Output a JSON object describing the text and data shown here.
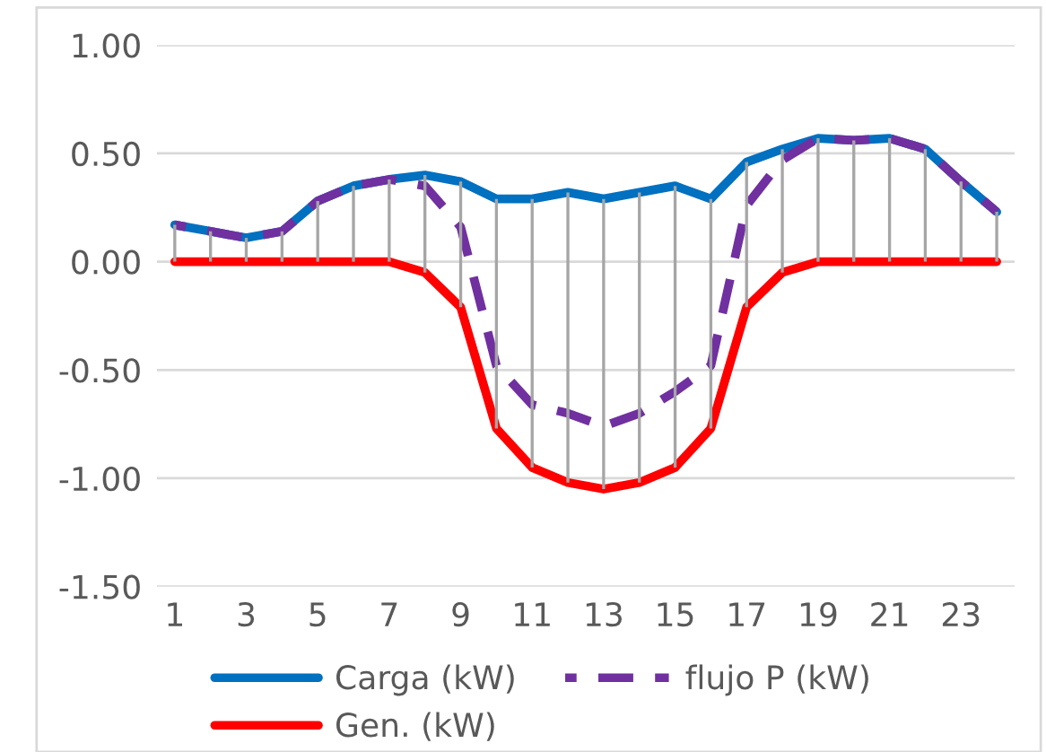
{
  "chart_data": {
    "type": "line",
    "categories": [
      "1",
      null,
      "3",
      null,
      "5",
      null,
      "7",
      null,
      "9",
      null,
      "11",
      null,
      "13",
      null,
      "15",
      null,
      "17",
      null,
      "19",
      null,
      "21",
      null,
      "23",
      null
    ],
    "series": [
      {
        "name": "Carga (kW)",
        "color": "#0070c0",
        "line_style": "solid",
        "values": [
          0.17,
          0.14,
          0.11,
          0.14,
          0.28,
          0.35,
          0.38,
          0.4,
          0.37,
          0.29,
          0.29,
          0.32,
          0.29,
          0.32,
          0.35,
          0.29,
          0.46,
          0.52,
          0.57,
          0.56,
          0.57,
          0.52,
          0.37,
          0.23
        ]
      },
      {
        "name": "Gen. (kW)",
        "color": "#ff0000",
        "line_style": "solid",
        "errors": [
          [
            0,
            0.17
          ],
          [
            0,
            0.14
          ],
          [
            0,
            0.11
          ],
          [
            0,
            0.14
          ],
          [
            0,
            0.28
          ],
          [
            0,
            0.35
          ],
          [
            0,
            0.38
          ],
          [
            -0.05,
            0.4
          ],
          [
            -0.21,
            0.37
          ],
          [
            -0.77,
            0.29
          ],
          [
            -0.95,
            0.29
          ],
          [
            -1.02,
            0.32
          ],
          [
            -1.05,
            0.29
          ],
          [
            -1.02,
            0.32
          ],
          [
            -0.95,
            0.35
          ],
          [
            -0.77,
            0.29
          ],
          [
            -0.21,
            0.46
          ],
          [
            -0.05,
            0.52
          ],
          [
            0,
            0.57
          ],
          [
            0,
            0.56
          ],
          [
            0,
            0.57
          ],
          [
            0,
            0.52
          ],
          [
            0,
            0.37
          ],
          [
            0,
            0.23
          ]
        ],
        "values": [
          0,
          0,
          0,
          0,
          0,
          0,
          0,
          -0.05,
          -0.21,
          -0.77,
          -0.95,
          -1.02,
          -1.05,
          -1.02,
          -0.95,
          -0.77,
          -0.21,
          -0.05,
          0,
          0,
          0,
          0,
          0,
          0
        ]
      },
      {
        "name": "flujo P (kW)",
        "color": "#7030a0",
        "line_style": "dashed",
        "values": [
          0.17,
          0.14,
          0.11,
          0.14,
          0.28,
          0.35,
          0.38,
          0.35,
          0.16,
          -0.48,
          -0.66,
          -0.7,
          -0.76,
          -0.7,
          -0.6,
          -0.48,
          0.26,
          0.47,
          0.57,
          0.56,
          0.57,
          0.52,
          0.37,
          0.23
        ]
      }
    ],
    "ylim": [
      -1.5,
      1.0
    ],
    "yticks": [
      {
        "value": -1.5,
        "label": "-1.50"
      },
      {
        "value": -1.0,
        "label": "-1.00"
      },
      {
        "value": -0.5,
        "label": "-0.50"
      },
      {
        "value": 0,
        "label": "0.00"
      },
      {
        "value": 0.5,
        "label": "0.50"
      },
      {
        "value": 1.0,
        "label": "1.00"
      }
    ],
    "grid": "y",
    "legend": "bottom",
    "marker": "none"
  }
}
